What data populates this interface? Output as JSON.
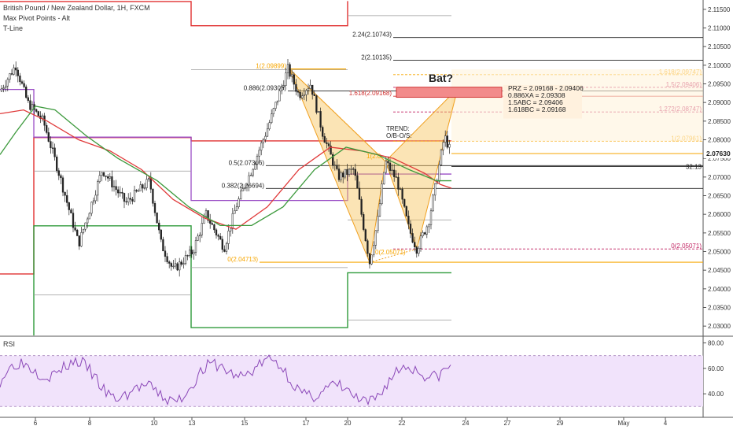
{
  "legend": {
    "symbol": "British Pound / New Zealand Dollar, 1H, FXCM",
    "indicator1": "Max Pivot Points - Alt",
    "indicator2": "T-Line"
  },
  "rsi": {
    "title": "RSI",
    "ticks": [
      "80.00",
      "60.00",
      "40.00"
    ],
    "tick_values": [
      80,
      60,
      40
    ],
    "band": [
      30,
      70
    ],
    "ylim": [
      24,
      84
    ]
  },
  "chart_data": {
    "type": "candlestick",
    "symbol": "GBPNZD",
    "timeframe": "1H",
    "ylim": [
      2.0275,
      2.1175
    ],
    "y_ticks": [
      2.03,
      2.035,
      2.04,
      2.045,
      2.05,
      2.055,
      2.06,
      2.065,
      2.07,
      2.075,
      2.08,
      2.085,
      2.09,
      2.095,
      2.1,
      2.105,
      2.11,
      2.115
    ],
    "y_tick_labels": [
      "2.03000",
      "2.03500",
      "2.04000",
      "2.04500",
      "2.05000",
      "2.05500",
      "2.06000",
      "2.06500",
      "2.07000",
      "2.07500",
      "2.08000",
      "2.08500",
      "2.09000",
      "2.09500",
      "2.10000",
      "2.10500",
      "2.11000",
      "2.11500"
    ],
    "last_price": "2.07630",
    "countdown": "32:13",
    "x_labels": [
      "6",
      "8",
      "10",
      "13",
      "15",
      "17",
      "20",
      "22",
      "24",
      "27",
      "29",
      "May",
      "4"
    ],
    "fib_levels": [
      {
        "label": "0(2.04713)",
        "value": 2.04713,
        "color": "#f7a600"
      },
      {
        "label": "0.382(2.06694)",
        "value": 2.06694,
        "color": "#222222"
      },
      {
        "label": "0.5(2.07306)",
        "value": 2.07306,
        "color": "#222222"
      },
      {
        "label": "0.886(2.09308)",
        "value": 2.09308,
        "color": "#222222"
      },
      {
        "label": "1(2.09899)",
        "value": 2.09899,
        "color": "#f7a600"
      },
      {
        "label": "1.618(2.09168)",
        "value": 2.09168,
        "color": "#d03030"
      },
      {
        "label": "2(2.10135)",
        "value": 2.10135,
        "color": "#222222"
      },
      {
        "label": "2.24(2.10743)",
        "value": 2.10743,
        "color": "#222222"
      }
    ],
    "fib_right_levels": [
      {
        "label": "1.618(2.09747)",
        "value": 2.09747,
        "color": "#f7a600"
      },
      {
        "label": "1.5(2.09406)",
        "value": 2.09406,
        "color": "#c02060"
      },
      {
        "label": "1.272(2.08747)",
        "value": 2.08747,
        "color": "#c02060"
      },
      {
        "label": "1(2.07961)",
        "value": 2.07961,
        "color": "#f7a600"
      },
      {
        "label": "0(2.05071)",
        "value": 2.05071,
        "color": "#c02060"
      }
    ],
    "bat_label": "Bat?",
    "prz_lines": [
      "PRZ = 2.09168 - 2.09406",
      "0.886XA = 2.09308",
      "1.5ABC = 2.09406",
      "1.618BC = 2.09168"
    ],
    "trend_label": "TREND:",
    "ob_label": "O/B-O/S:",
    "pattern_low_label": "0(2.05071)",
    "pattern_mid_label": "1(2.0"
  }
}
